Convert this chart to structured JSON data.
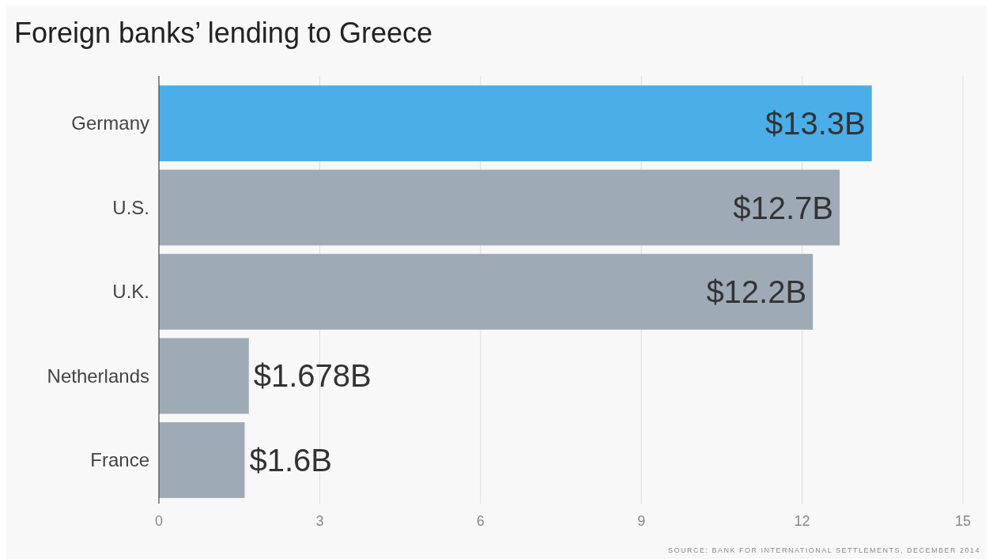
{
  "chart_data": {
    "type": "bar",
    "title": "Foreign banks’ lending to Greece",
    "orientation": "horizontal",
    "categories": [
      "Germany",
      "U.S.",
      "U.K.",
      "Netherlands",
      "France"
    ],
    "values": [
      13.3,
      12.7,
      12.2,
      1.678,
      1.6
    ],
    "colors": [
      "#4baee8",
      "#9eabb6",
      "#9eabb6",
      "#9eabb6",
      "#9eabb6"
    ],
    "value_labels": [
      "$13.3B",
      "$12.7B",
      "$12.2B",
      "$1.678B",
      "$1.6B"
    ],
    "xlim": [
      0,
      15
    ],
    "xticks": [
      0,
      3,
      6,
      9,
      12,
      15
    ],
    "grid": "x",
    "annotations": [
      "SOURCE: BANK FOR INTERNATIONAL SETTLEMENTS, DECEMBER 2014"
    ]
  }
}
